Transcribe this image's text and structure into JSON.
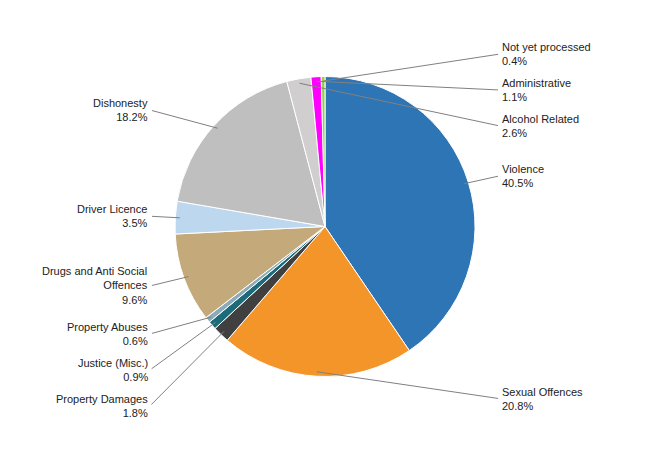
{
  "chart_data": {
    "type": "pie",
    "categories": [
      "Violence",
      "Sexual Offences",
      "Property Damages",
      "Justice (Misc.)",
      "Property Abuses",
      "Drugs and Anti Social\nOffences",
      "Driver Licence",
      "Dishonesty",
      "Alcohol Related",
      "Administrative",
      "Not yet processed"
    ],
    "values": [
      40.5,
      20.8,
      1.8,
      0.9,
      0.6,
      9.6,
      3.5,
      18.2,
      2.6,
      1.1,
      0.4
    ],
    "value_labels": [
      "40.5%",
      "20.8%",
      "1.8%",
      "0.9%",
      "0.6%",
      "9.6%",
      "3.5%",
      "18.2%",
      "2.6%",
      "1.1%",
      "0.4%"
    ],
    "colors": [
      "#2E75B6",
      "#F4952A",
      "#404040",
      "#1B6B7B",
      "#8CAAB8",
      "#C4A97A",
      "#BDD7EE",
      "#BFBFBF",
      "#D0CECE",
      "#FF00FF",
      "#92D050"
    ],
    "data_labels": true
  }
}
